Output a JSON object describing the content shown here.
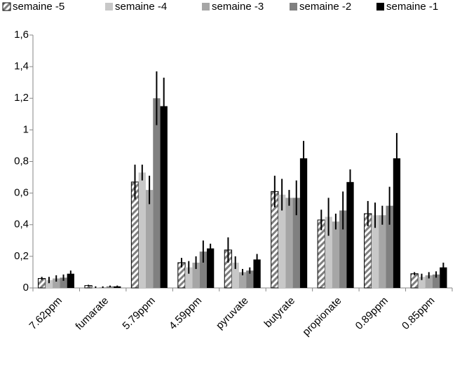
{
  "chart_data": {
    "type": "bar",
    "categories": [
      "7.62ppm",
      "fumarate",
      "5.79ppm",
      "4.59ppm",
      "pyruvate",
      "butyrate",
      "propionate",
      "0.89ppm",
      "0.85ppm"
    ],
    "series": [
      {
        "name": "semaine -5",
        "color": "#7f7f7f",
        "pattern": "diagonal-hatch",
        "values": [
          0.06,
          0.015,
          0.67,
          0.16,
          0.24,
          0.61,
          0.43,
          0.47,
          0.09
        ],
        "errors": [
          0.01,
          0.005,
          0.11,
          0.03,
          0.08,
          0.1,
          0.065,
          0.08,
          0.01
        ]
      },
      {
        "name": "semaine -4",
        "color": "#c8c8c8",
        "values": [
          0.05,
          0.005,
          0.73,
          0.13,
          0.16,
          0.59,
          0.45,
          0.46,
          0.07
        ],
        "errors": [
          0.02,
          0.005,
          0.05,
          0.04,
          0.04,
          0.1,
          0.12,
          0.08,
          0.02
        ]
      },
      {
        "name": "semaine -3",
        "color": "#a6a6a6",
        "values": [
          0.06,
          0.005,
          0.62,
          0.16,
          0.1,
          0.57,
          0.42,
          0.46,
          0.08
        ],
        "errors": [
          0.02,
          0.005,
          0.09,
          0.04,
          0.02,
          0.05,
          0.05,
          0.06,
          0.02
        ]
      },
      {
        "name": "semaine -2",
        "color": "#808080",
        "values": [
          0.065,
          0.01,
          1.2,
          0.23,
          0.11,
          0.57,
          0.49,
          0.52,
          0.085
        ],
        "errors": [
          0.02,
          0.005,
          0.17,
          0.07,
          0.02,
          0.11,
          0.12,
          0.12,
          0.02
        ]
      },
      {
        "name": "semaine -1",
        "color": "#000000",
        "values": [
          0.09,
          0.01,
          1.15,
          0.25,
          0.18,
          0.82,
          0.67,
          0.82,
          0.13
        ],
        "errors": [
          0.02,
          0.005,
          0.18,
          0.03,
          0.035,
          0.11,
          0.08,
          0.16,
          0.03
        ]
      }
    ],
    "ylim": [
      0,
      1.6
    ],
    "yticks": [
      0,
      {
        "value": 0.2,
        "label": "0,2"
      },
      {
        "value": 0.4,
        "label": "0,4"
      },
      {
        "value": 0.6,
        "label": "0,6"
      },
      {
        "value": 0.8,
        "label": "0,8"
      },
      {
        "value": 1,
        "label": "1"
      },
      {
        "value": 1.2,
        "label": "1,2"
      },
      {
        "value": 1.4,
        "label": "1,4"
      },
      {
        "value": 1.6,
        "label": "1,6"
      }
    ],
    "grid": false,
    "legend": "top"
  }
}
